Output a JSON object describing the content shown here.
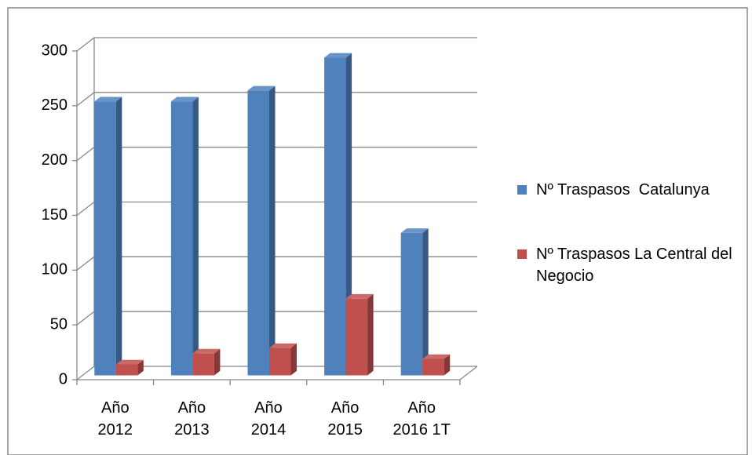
{
  "chart_data": {
    "type": "bar3d",
    "categories": [
      "Año 2012",
      "Año 2013",
      "Año 2014",
      "Año 2015",
      "Año 2016 1T"
    ],
    "series": [
      {
        "name": "Nº Traspasos  Catalunya",
        "color": "#4f81bd",
        "values": [
          250,
          250,
          260,
          290,
          130
        ]
      },
      {
        "name": "Nº Traspasos La Central del Negocio",
        "color": "#c0504d",
        "values": [
          10,
          20,
          25,
          70,
          15
        ]
      }
    ],
    "ylim": [
      0,
      300
    ],
    "yticks": [
      0,
      50,
      100,
      150,
      200,
      250,
      300
    ],
    "grid": true,
    "legend": "right"
  }
}
